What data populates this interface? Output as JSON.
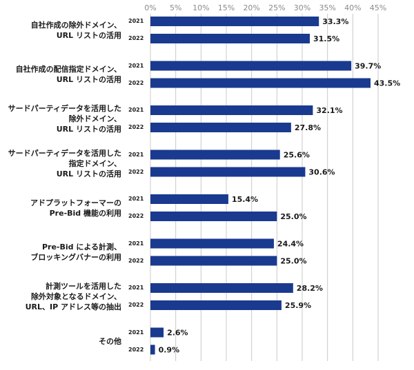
{
  "chart_data": {
    "type": "bar",
    "orientation": "horizontal",
    "title": "",
    "xlabel": "",
    "ylabel": "",
    "xlim": [
      0,
      45
    ],
    "x_ticks": [
      "0%",
      "5%",
      "10%",
      "15%",
      "20%",
      "25%",
      "30%",
      "35%",
      "40%",
      "45%"
    ],
    "grid": true,
    "bar_color": "#1a3a8f",
    "grid_color": "#c8c8c8",
    "series_names": [
      "2021",
      "2022"
    ],
    "categories": [
      {
        "label": "自社作成の除外ドメイン、\nURL リストの活用",
        "values": [
          33.3,
          31.5
        ],
        "value_labels": [
          "33.3%",
          "31.5%"
        ]
      },
      {
        "label": "自社作成の配信指定ドメイン、\nURL リストの活用",
        "values": [
          39.7,
          43.5
        ],
        "value_labels": [
          "39.7%",
          "43.5%"
        ]
      },
      {
        "label": "サードパーティデータを活用した\n除外ドメイン、\nURL リストの活用",
        "values": [
          32.1,
          27.8
        ],
        "value_labels": [
          "32.1%",
          "27.8%"
        ]
      },
      {
        "label": "サードパーティデータを活用した\n指定ドメイン、\nURL リストの活用",
        "values": [
          25.6,
          30.6
        ],
        "value_labels": [
          "25.6%",
          "30.6%"
        ]
      },
      {
        "label": "アドプラットフォーマーの\nPre-Bid 機能の利用",
        "values": [
          15.4,
          25.0
        ],
        "value_labels": [
          "15.4%",
          "25.0%"
        ]
      },
      {
        "label": "Pre-Bid による計測、\nブロッキングバナーの利用",
        "values": [
          24.4,
          25.0
        ],
        "value_labels": [
          "24.4%",
          "25.0%"
        ]
      },
      {
        "label": "計測ツールを活用した\n除外対象となるドメイン、\nURL、IP アドレス等の抽出",
        "values": [
          28.2,
          25.9
        ],
        "value_labels": [
          "28.2%",
          "25.9%"
        ]
      },
      {
        "label": "その他",
        "values": [
          2.6,
          0.9
        ],
        "value_labels": [
          "2.6%",
          "0.9%"
        ]
      }
    ]
  }
}
